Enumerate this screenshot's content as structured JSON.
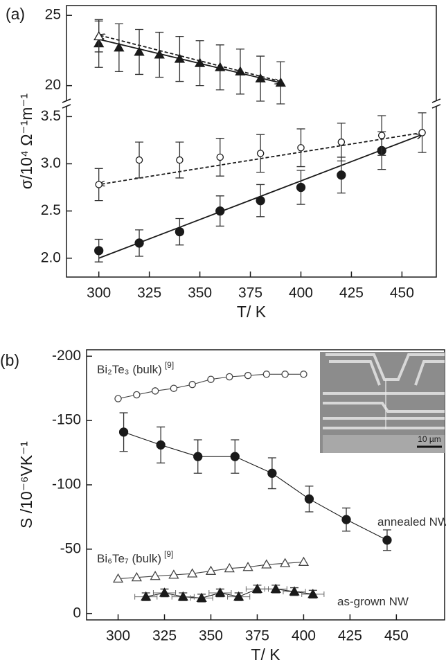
{
  "chart_data": [
    {
      "type": "scatter",
      "panel_label": "(a)",
      "xlim": [
        284,
        467
      ],
      "ylim": [
        18.8,
        25.7
      ],
      "yticks": [
        20,
        25
      ],
      "series": [
        {
          "marker": "triangle",
          "filled": true,
          "color": "#1a1a1a",
          "x": [
            300,
            310,
            320,
            330,
            340,
            350,
            360,
            370,
            380,
            390
          ],
          "values": [
            23.0,
            22.7,
            22.4,
            22.2,
            21.9,
            21.6,
            21.3,
            21.0,
            20.5,
            20.2
          ],
          "errors": [
            1.7,
            1.7,
            1.6,
            1.6,
            1.6,
            1.6,
            1.6,
            1.6,
            1.6,
            1.5
          ]
        },
        {
          "marker": "triangle",
          "filled": false,
          "color": "#1a1a1a",
          "x": [
            300
          ],
          "values": [
            23.5
          ],
          "errors": [
            1.1
          ]
        }
      ],
      "lines": [
        {
          "x": [
            300,
            390
          ],
          "y": [
            23.3,
            20.2
          ],
          "style": "solid"
        },
        {
          "x": [
            390,
            300
          ],
          "y": [
            20.3,
            23.6
          ],
          "style": "dashed"
        }
      ]
    },
    {
      "type": "scatter",
      "xlim": [
        284,
        467
      ],
      "ylim": [
        1.8,
        3.62
      ],
      "yticks": [
        {
          "value": 2,
          "label": "2.0"
        },
        {
          "value": 2.5,
          "label": "2.5"
        },
        {
          "value": 3,
          "label": "3.0"
        },
        {
          "value": 3.5,
          "label": "3.5"
        }
      ],
      "xticks": [
        300,
        325,
        350,
        375,
        400,
        425,
        450
      ],
      "xlabel": "T/ K",
      "ylabel": "σ/10⁴ Ω⁻¹m⁻¹",
      "series": [
        {
          "marker": "circle",
          "filled": true,
          "color": "#1a1a1a",
          "x": [
            300,
            320,
            340,
            360,
            380,
            400,
            420,
            440
          ],
          "values": [
            2.08,
            2.16,
            2.28,
            2.5,
            2.61,
            2.75,
            2.88,
            3.14
          ],
          "errors": [
            0.12,
            0.14,
            0.14,
            0.16,
            0.17,
            0.18,
            0.19,
            0.2
          ]
        },
        {
          "marker": "circle",
          "filled": false,
          "color": "#1a1a1a",
          "x": [
            300,
            320,
            340,
            360,
            380,
            400,
            420,
            440,
            460
          ],
          "values": [
            2.78,
            3.04,
            3.04,
            3.07,
            3.11,
            3.17,
            3.23,
            3.3,
            3.33
          ],
          "errors": [
            0.17,
            0.19,
            0.19,
            0.2,
            0.2,
            0.2,
            0.2,
            0.21,
            0.21
          ]
        }
      ],
      "lines": [
        {
          "x": [
            300,
            460
          ],
          "y": [
            2.0,
            3.31
          ],
          "style": "solid"
        },
        {
          "x": [
            460,
            300
          ],
          "y": [
            3.33,
            2.78
          ],
          "style": "dashed"
        }
      ]
    },
    {
      "type": "line",
      "panel_label": "(b)",
      "xlim": [
        283,
        476
      ],
      "ylim": [
        5,
        -205
      ],
      "yticks": [
        -200,
        -150,
        -100,
        -50,
        0
      ],
      "xticks": [
        300,
        325,
        350,
        375,
        400,
        425,
        450
      ],
      "xlabel": "T/ K",
      "ylabel": "S /10⁻⁶VK⁻¹",
      "inset_scale": "10 µm",
      "series": [
        {
          "name": "Bi₂Te₃ (bulk)",
          "ref": "[9]",
          "marker": "circle",
          "filled": false,
          "color": "#444444",
          "x": [
            300,
            310,
            320,
            330,
            340,
            350,
            360,
            370,
            380,
            390,
            400
          ],
          "values": [
            -167,
            -170,
            -173,
            -175,
            -178,
            -182,
            -184,
            -185,
            -186,
            -186,
            -186
          ]
        },
        {
          "name": "annealed NW",
          "marker": "circle",
          "filled": true,
          "color": "#1a1a1a",
          "x": [
            303,
            323,
            343,
            363,
            383,
            403,
            423,
            445
          ],
          "values": [
            -141,
            -131,
            -122,
            -122,
            -109,
            -89,
            -73,
            -57
          ],
          "errors": [
            15,
            14,
            13,
            13,
            12,
            10,
            9,
            8
          ]
        },
        {
          "name": "Bi₆Te₇ (bulk)",
          "ref": "[9]",
          "marker": "triangle",
          "filled": false,
          "color": "#444444",
          "x": [
            300,
            310,
            320,
            330,
            340,
            350,
            360,
            370,
            380,
            390,
            400
          ],
          "values": [
            -27,
            -28,
            -29,
            -30,
            -31,
            -33,
            -35,
            -36,
            -38,
            -39,
            -40
          ]
        },
        {
          "name": "as-grown NW",
          "marker": "triangle",
          "filled": true,
          "color": "#1a1a1a",
          "x": [
            315,
            325,
            335,
            345,
            355,
            365,
            375,
            385,
            395,
            405
          ],
          "values": [
            -13,
            -16,
            -13,
            -12,
            -16,
            -13,
            -19,
            -19,
            -17,
            -15
          ],
          "errors": [
            3,
            3,
            3,
            3,
            3,
            3,
            3,
            3,
            3,
            3
          ],
          "xerrors": [
            6,
            6,
            6,
            6,
            6,
            6,
            6,
            6,
            6,
            6
          ]
        }
      ]
    }
  ]
}
